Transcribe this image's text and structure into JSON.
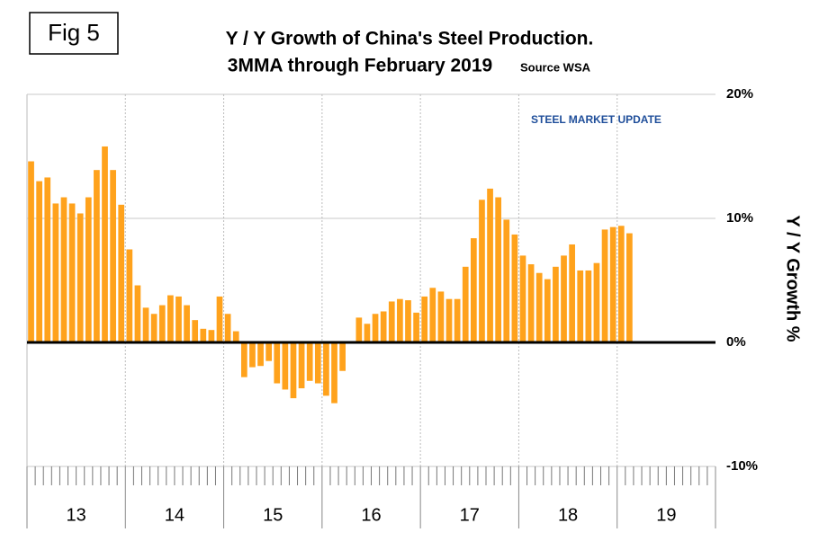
{
  "chart_data": {
    "type": "bar",
    "figure_label": "Fig 5",
    "title": "Y / Y Growth of China's Steel Production.",
    "subtitle": "3MMA through February 2019",
    "source": "Source WSA",
    "logo": "STEEL MARKET UPDATE",
    "y_label": "Y / Y Growth %",
    "color": "#FFA21C",
    "categories": [
      null,
      null,
      null,
      null,
      null,
      null,
      null,
      null,
      null,
      null,
      null,
      null,
      null,
      null,
      null,
      null,
      null,
      null,
      null,
      null,
      null,
      null,
      null,
      null,
      null,
      null,
      null,
      null,
      null,
      null,
      null,
      null,
      null,
      null,
      null,
      null,
      null,
      null,
      null,
      null,
      null,
      null,
      null,
      null,
      null,
      null,
      null,
      null,
      null,
      null,
      null,
      null,
      null,
      null,
      null,
      null,
      null,
      null,
      null,
      null,
      null,
      null,
      null,
      null,
      null,
      null,
      null,
      null,
      null,
      null,
      null,
      null,
      null,
      null
    ],
    "group_labels": [
      "13",
      "14",
      "15",
      "16",
      "17",
      "18",
      "19"
    ],
    "values": [
      14.6,
      13.0,
      13.3,
      11.2,
      11.7,
      11.2,
      10.4,
      11.7,
      13.9,
      15.8,
      13.9,
      11.1,
      7.5,
      4.6,
      2.8,
      2.3,
      3.0,
      3.8,
      3.7,
      3.0,
      1.8,
      1.1,
      1.0,
      3.7,
      2.3,
      0.9,
      -2.8,
      -2.0,
      -1.9,
      -1.5,
      -3.3,
      -3.8,
      -4.5,
      -3.7,
      -3.1,
      -3.3,
      -4.3,
      -4.9,
      -2.3,
      0.1,
      2.0,
      1.5,
      2.3,
      2.5,
      3.3,
      3.5,
      3.4,
      2.4,
      3.7,
      4.4,
      4.1,
      3.5,
      3.5,
      6.1,
      8.4,
      11.5,
      12.4,
      11.7,
      9.9,
      8.7,
      7.0,
      6.3,
      5.6,
      5.1,
      6.1,
      7.0,
      7.9,
      5.8,
      5.8,
      6.4,
      9.1,
      9.3,
      9.4,
      8.8
    ],
    "ylim": [
      -10,
      20
    ],
    "yticks": [
      {
        "value": -10,
        "label": "-10%"
      },
      {
        "value": 0,
        "label": "0%"
      },
      {
        "value": 10,
        "label": "10%"
      },
      {
        "value": 20,
        "label": "20%"
      }
    ],
    "grid": true
  }
}
